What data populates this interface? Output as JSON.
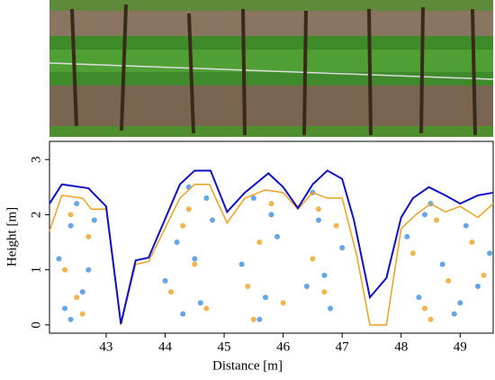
{
  "chart_data": {
    "type": "line",
    "x_label": "Distance [m]",
    "y_label": "Height [m]",
    "xlim": [
      42.04,
      49.56
    ],
    "ylim": [
      -0.15,
      3.33
    ],
    "xticks": [
      43,
      44,
      45,
      46,
      47,
      48,
      49
    ],
    "yticks": [
      0,
      1,
      2,
      3
    ],
    "series": [
      {
        "type": "scatter",
        "color": "#3f8ee0",
        "x": [
          42.2,
          42.4,
          42.6,
          42.8,
          42.3,
          42.5,
          42.7,
          42.4,
          44.0,
          44.2,
          44.4,
          44.6,
          44.8,
          44.3,
          44.5,
          44.7,
          45.3,
          45.5,
          45.7,
          45.9,
          45.6,
          45.8,
          46.4,
          46.6,
          46.8,
          47.0,
          46.5,
          46.7,
          48.1,
          48.3,
          48.5,
          48.7,
          48.9,
          49.1,
          49.3,
          49.5,
          48.4,
          49.0
        ],
        "values": [
          1.2,
          1.8,
          0.6,
          1.9,
          0.3,
          2.2,
          1.0,
          0.1,
          0.8,
          1.5,
          2.5,
          0.4,
          1.9,
          0.2,
          1.2,
          2.3,
          1.1,
          2.3,
          0.5,
          1.6,
          0.1,
          2.0,
          0.7,
          1.9,
          0.3,
          1.4,
          2.4,
          0.9,
          1.6,
          0.5,
          2.2,
          1.1,
          0.2,
          1.8,
          0.7,
          1.3,
          2.0,
          0.4
        ]
      },
      {
        "type": "scatter",
        "color": "#f0a020",
        "x": [
          42.3,
          42.5,
          42.7,
          42.4,
          42.6,
          44.1,
          44.3,
          44.5,
          44.7,
          44.4,
          45.4,
          45.6,
          45.8,
          46.0,
          45.5,
          46.5,
          46.7,
          46.9,
          46.6,
          48.2,
          48.4,
          48.6,
          48.8,
          49.2,
          49.4,
          48.5
        ],
        "values": [
          1.0,
          0.5,
          1.6,
          2.0,
          0.2,
          0.6,
          1.8,
          1.1,
          0.3,
          2.1,
          0.7,
          1.5,
          2.2,
          0.4,
          0.1,
          1.2,
          0.6,
          1.8,
          2.1,
          1.3,
          0.3,
          1.9,
          0.8,
          1.5,
          0.9,
          0.1
        ]
      },
      {
        "type": "line",
        "color": "#f0a020",
        "x": [
          42.04,
          42.25,
          42.6,
          42.75,
          43.0,
          43.25,
          43.5,
          43.72,
          44.25,
          44.5,
          44.75,
          45.05,
          45.35,
          45.7,
          46.0,
          46.25,
          46.5,
          46.75,
          47.0,
          47.25,
          47.47,
          47.75,
          48.0,
          48.25,
          48.5,
          48.75,
          49.0,
          49.3,
          49.56
        ],
        "values": [
          1.7,
          2.35,
          2.3,
          2.1,
          2.1,
          0.0,
          1.1,
          1.15,
          2.3,
          2.55,
          2.55,
          1.85,
          2.3,
          2.45,
          2.4,
          2.1,
          2.4,
          2.3,
          2.3,
          1.25,
          0.0,
          0.0,
          1.75,
          2.0,
          2.2,
          2.05,
          2.15,
          1.95,
          2.2
        ]
      },
      {
        "type": "line",
        "color": "#1010c8",
        "x": [
          42.04,
          42.25,
          42.7,
          43.0,
          43.25,
          43.5,
          43.72,
          44.25,
          44.5,
          44.77,
          45.05,
          45.35,
          45.75,
          46.0,
          46.25,
          46.5,
          46.75,
          47.0,
          47.2,
          47.47,
          47.75,
          48.0,
          48.2,
          48.47,
          48.75,
          49.0,
          49.3,
          49.56
        ],
        "values": [
          2.2,
          2.55,
          2.48,
          2.15,
          0.02,
          1.17,
          1.22,
          2.55,
          2.8,
          2.8,
          2.05,
          2.4,
          2.75,
          2.5,
          2.12,
          2.55,
          2.8,
          2.65,
          1.9,
          0.5,
          0.85,
          1.95,
          2.3,
          2.5,
          2.35,
          2.2,
          2.35,
          2.4
        ]
      }
    ]
  }
}
